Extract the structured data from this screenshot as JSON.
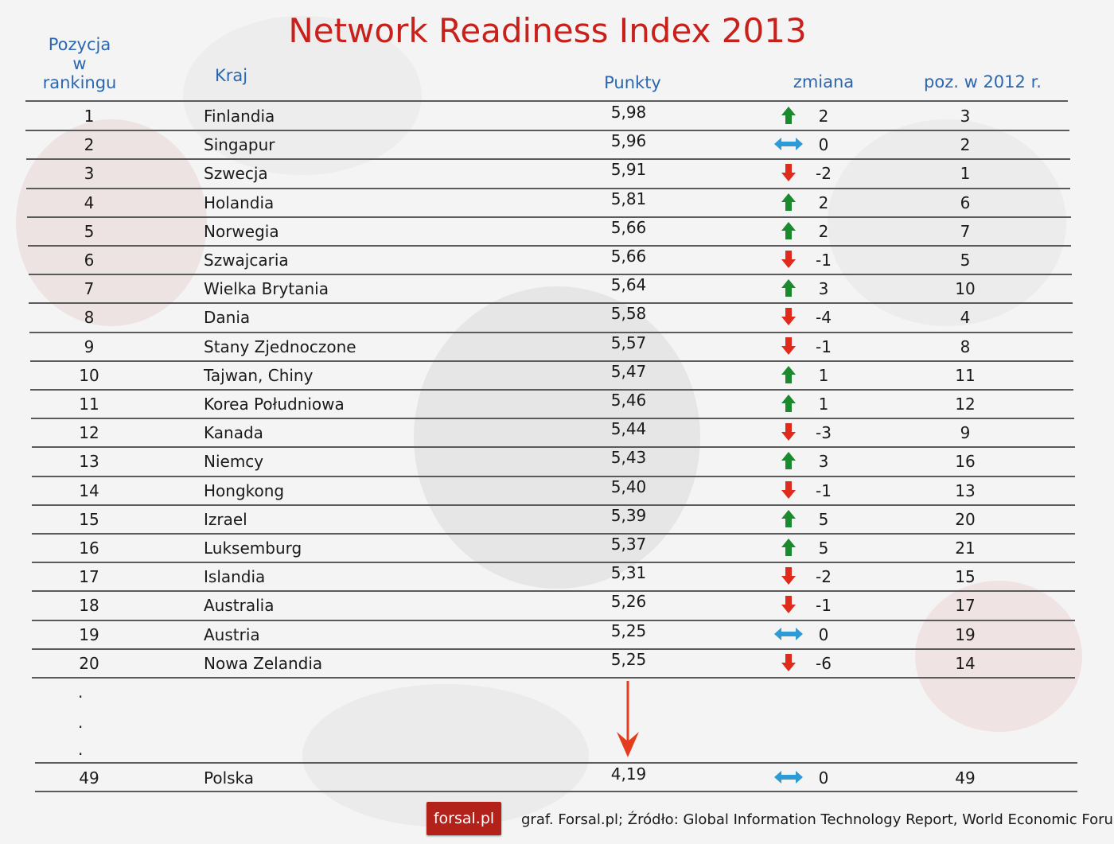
{
  "title": "Network Readiness Index 2013",
  "headers": {
    "rank": [
      "Pozycja",
      "w",
      "rankingu"
    ],
    "country": "Kraj",
    "points": "Punkty",
    "change": "zmiana",
    "prev": "poz. w 2012 r."
  },
  "colors": {
    "title": "#c8201a",
    "header": "#2b67b0",
    "up": "#1b8a2e",
    "down": "#e02a1c",
    "same": "#2e9bd6"
  },
  "rows": [
    {
      "rank": "1",
      "country": "Finlandia",
      "points": "5,98",
      "trend": "up",
      "change": "2",
      "prev": "3"
    },
    {
      "rank": "2",
      "country": "Singapur",
      "points": "5,96",
      "trend": "same",
      "change": "0",
      "prev": "2"
    },
    {
      "rank": "3",
      "country": "Szwecja",
      "points": "5,91",
      "trend": "down",
      "change": "-2",
      "prev": "1"
    },
    {
      "rank": "4",
      "country": "Holandia",
      "points": "5,81",
      "trend": "up",
      "change": "2",
      "prev": "6"
    },
    {
      "rank": "5",
      "country": "Norwegia",
      "points": "5,66",
      "trend": "up",
      "change": "2",
      "prev": "7"
    },
    {
      "rank": "6",
      "country": "Szwajcaria",
      "points": "5,66",
      "trend": "down",
      "change": "-1",
      "prev": "5"
    },
    {
      "rank": "7",
      "country": "Wielka Brytania",
      "points": "5,64",
      "trend": "up",
      "change": "3",
      "prev": "10"
    },
    {
      "rank": "8",
      "country": "Dania",
      "points": "5,58",
      "trend": "down",
      "change": "-4",
      "prev": "4"
    },
    {
      "rank": "9",
      "country": "Stany Zjednoczone",
      "points": "5,57",
      "trend": "down",
      "change": "-1",
      "prev": "8"
    },
    {
      "rank": "10",
      "country": "Tajwan, Chiny",
      "points": "5,47",
      "trend": "up",
      "change": "1",
      "prev": "11"
    },
    {
      "rank": "11",
      "country": "Korea Południowa",
      "points": "5,46",
      "trend": "up",
      "change": "1",
      "prev": "12"
    },
    {
      "rank": "12",
      "country": "Kanada",
      "points": "5,44",
      "trend": "down",
      "change": "-3",
      "prev": "9"
    },
    {
      "rank": "13",
      "country": "Niemcy",
      "points": "5,43",
      "trend": "up",
      "change": "3",
      "prev": "16"
    },
    {
      "rank": "14",
      "country": "Hongkong",
      "points": "5,40",
      "trend": "down",
      "change": "-1",
      "prev": "13"
    },
    {
      "rank": "15",
      "country": "Izrael",
      "points": "5,39",
      "trend": "up",
      "change": "5",
      "prev": "20"
    },
    {
      "rank": "16",
      "country": "Luksemburg",
      "points": "5,37",
      "trend": "up",
      "change": "5",
      "prev": "21"
    },
    {
      "rank": "17",
      "country": "Islandia",
      "points": "5,31",
      "trend": "down",
      "change": "-2",
      "prev": "15"
    },
    {
      "rank": "18",
      "country": "Australia",
      "points": "5,26",
      "trend": "down",
      "change": "-1",
      "prev": "17"
    },
    {
      "rank": "19",
      "country": "Austria",
      "points": "5,25",
      "trend": "same",
      "change": "0",
      "prev": "19"
    },
    {
      "rank": "20",
      "country": "Nowa Zelandia",
      "points": "5,25",
      "trend": "down",
      "change": "-6",
      "prev": "14"
    }
  ],
  "gap_dots": [
    ".",
    ".",
    "."
  ],
  "last_row": {
    "rank": "49",
    "country": "Polska",
    "points": "4,19",
    "trend": "same",
    "change": "0",
    "prev": "49"
  },
  "logo": "forsal.pl",
  "footer": "graf. Forsal.pl;   Źródło: Global Information Technology Report, World Economic Forum",
  "chart_data": {
    "type": "table",
    "title": "Network Readiness Index 2013",
    "columns": [
      "Pozycja w rankingu",
      "Kraj",
      "Punkty",
      "zmiana",
      "poz. w 2012 r."
    ],
    "rows": [
      [
        1,
        "Finlandia",
        5.98,
        2,
        3
      ],
      [
        2,
        "Singapur",
        5.96,
        0,
        2
      ],
      [
        3,
        "Szwecja",
        5.91,
        -2,
        1
      ],
      [
        4,
        "Holandia",
        5.81,
        2,
        6
      ],
      [
        5,
        "Norwegia",
        5.66,
        2,
        7
      ],
      [
        6,
        "Szwajcaria",
        5.66,
        -1,
        5
      ],
      [
        7,
        "Wielka Brytania",
        5.64,
        3,
        10
      ],
      [
        8,
        "Dania",
        5.58,
        -4,
        4
      ],
      [
        9,
        "Stany Zjednoczone",
        5.57,
        -1,
        8
      ],
      [
        10,
        "Tajwan, Chiny",
        5.47,
        1,
        11
      ],
      [
        11,
        "Korea Południowa",
        5.46,
        1,
        12
      ],
      [
        12,
        "Kanada",
        5.44,
        -3,
        9
      ],
      [
        13,
        "Niemcy",
        5.43,
        3,
        16
      ],
      [
        14,
        "Hongkong",
        5.4,
        -1,
        13
      ],
      [
        15,
        "Izrael",
        5.39,
        5,
        20
      ],
      [
        16,
        "Luksemburg",
        5.37,
        5,
        21
      ],
      [
        17,
        "Islandia",
        5.31,
        -2,
        15
      ],
      [
        18,
        "Australia",
        5.26,
        -1,
        17
      ],
      [
        19,
        "Austria",
        5.25,
        0,
        19
      ],
      [
        20,
        "Nowa Zelandia",
        5.25,
        -6,
        14
      ],
      [
        49,
        "Polska",
        4.19,
        0,
        49
      ]
    ]
  }
}
